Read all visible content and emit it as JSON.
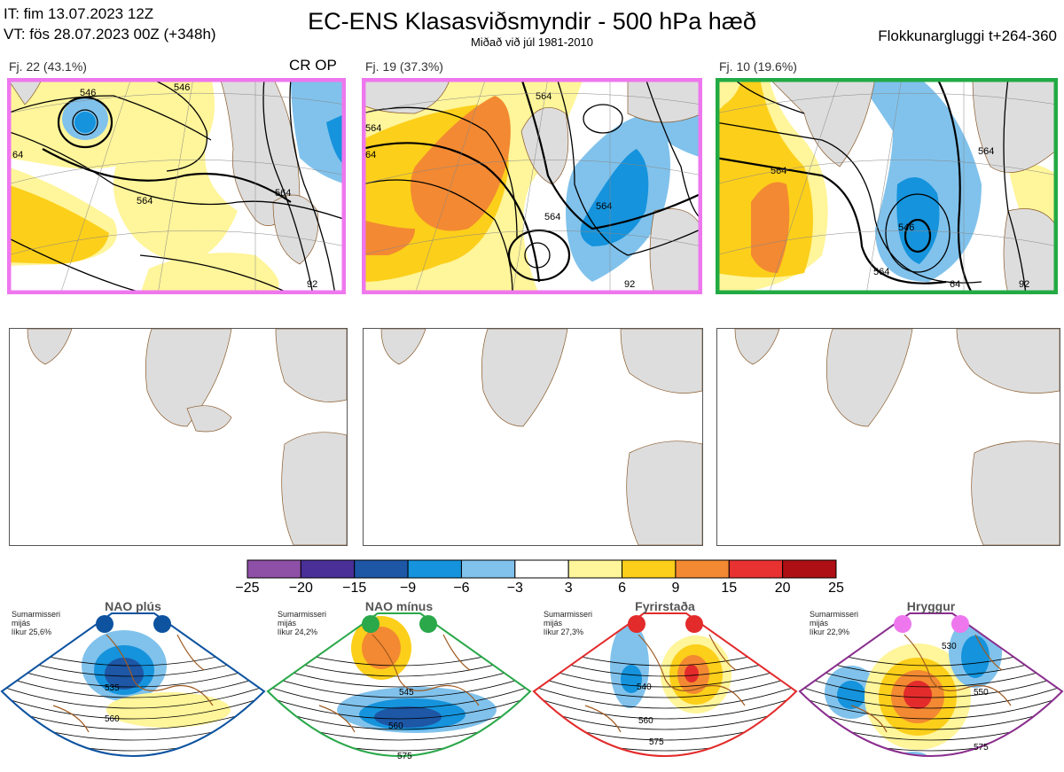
{
  "header": {
    "it_line": "IT: fim 13.07.2023 12Z",
    "vt_line": "VT: fös 28.07.2023 00Z  (+348h)",
    "title": "EC-ENS Klasasviðsmyndir - 500 hPa hæð",
    "subtitle": "Miðað við júl 1981-2010",
    "window": "Flokkunargluggi t+264-360"
  },
  "clusters": [
    {
      "label": "Fj. 22 (43.1%)",
      "extra": "CR OP",
      "frame_color": "#ee77ee",
      "contours": [
        "546",
        "64",
        "564",
        "564",
        "92",
        "546"
      ]
    },
    {
      "label": "Fj. 19 (37.3%)",
      "extra": "",
      "frame_color": "#ee77ee",
      "contours": [
        "564",
        "64",
        "564",
        "564",
        "92",
        "564"
      ]
    },
    {
      "label": "Fj. 10 (19.6%)",
      "extra": "",
      "frame_color": "#22aa44",
      "contours": [
        "564",
        "546",
        "564",
        "64",
        "92",
        "564"
      ]
    }
  ],
  "colorbar": {
    "colors": [
      "#8e4fa6",
      "#4a2f99",
      "#1d57a6",
      "#1593dc",
      "#80c2ec",
      "#ffffff",
      "#fff59a",
      "#fccf1a",
      "#f38932",
      "#e83131",
      "#ad0f14"
    ],
    "ticks": [
      "−25",
      "−20",
      "−15",
      "−9",
      "−6",
      "−3",
      "3",
      "6",
      "9",
      "15",
      "20",
      "25"
    ]
  },
  "regimes": [
    {
      "name": "NAO plús",
      "season": "Sumarmisseri",
      "type": "mijás",
      "prob": "líkur 25,6%",
      "color": "#0d53a0",
      "dot_color": "#0d53a0",
      "labels": [
        "535",
        "560"
      ]
    },
    {
      "name": "NAO mínus",
      "season": "Sumarmisseri",
      "type": "mijás",
      "prob": "líkur 24,2%",
      "color": "#2aa84a",
      "dot_color": "#2aa84a",
      "labels": [
        "545",
        "560",
        "575"
      ]
    },
    {
      "name": "Fyrirstaða",
      "season": "Sumarmisseri",
      "type": "mijás",
      "prob": "líkur 27,3%",
      "color": "#e32b2b",
      "dot_color": "#e32b2b",
      "labels": [
        "540",
        "560",
        "575"
      ]
    },
    {
      "name": "Hryggur",
      "season": "Sumarmisseri",
      "type": "mijás",
      "prob": "líkur 22,9%",
      "color": "#8a2e8e",
      "dot_color": "#ee77ee",
      "labels": [
        "530",
        "550",
        "575"
      ]
    }
  ]
}
